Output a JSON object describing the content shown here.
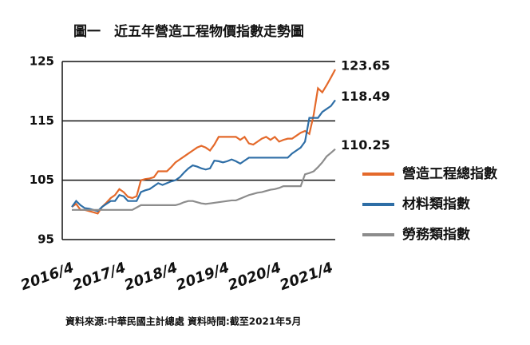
{
  "chart_data": {
    "type": "line",
    "title": "圖一　近五年營造工程物價指數走勢圖",
    "source": "資料來源:中華民國主計總處  資料時間:截至2021年5月",
    "categories": [
      "2016/4",
      null,
      null,
      null,
      null,
      null,
      null,
      null,
      null,
      null,
      null,
      null,
      "2017/4",
      null,
      null,
      null,
      null,
      null,
      null,
      null,
      null,
      null,
      null,
      null,
      "2018/4",
      null,
      null,
      null,
      null,
      null,
      null,
      null,
      null,
      null,
      null,
      null,
      "2019/4",
      null,
      null,
      null,
      null,
      null,
      null,
      null,
      null,
      null,
      null,
      null,
      "2020/4",
      null,
      null,
      null,
      null,
      null,
      null,
      null,
      null,
      null,
      null,
      null,
      "2021/4",
      null
    ],
    "ylim": [
      95,
      125
    ],
    "yticks": [
      95,
      105,
      115,
      125
    ],
    "grid": true,
    "series": [
      {
        "name": "營造工程總指數",
        "color": "#e4692a",
        "values": [
          100.5,
          101,
          100,
          100,
          99.8,
          99.6,
          99.4,
          100.5,
          101.2,
          102,
          102.5,
          103.5,
          103,
          102.2,
          102,
          102.3,
          105,
          105.2,
          105.3,
          105.5,
          106.5,
          106.5,
          106.5,
          107.2,
          108,
          108.5,
          109,
          109.5,
          110,
          110.5,
          110.8,
          110.5,
          110,
          111,
          112.3,
          112.3,
          112.3,
          112.3,
          112.3,
          111.8,
          112.3,
          111.2,
          111,
          111.5,
          112,
          112.3,
          111.8,
          112.3,
          111.5,
          111.8,
          112,
          112,
          112.5,
          113,
          113.3,
          112.8,
          116,
          120.5,
          119.8,
          121,
          122.3,
          123.65
        ]
      },
      {
        "name": "材料類指數",
        "color": "#2e6ea6",
        "values": [
          100.5,
          101.5,
          100.8,
          100.3,
          100.2,
          100,
          99.8,
          100.5,
          101,
          101.5,
          101.5,
          102.5,
          102.3,
          101.5,
          101.5,
          101.5,
          103,
          103.3,
          103.5,
          104,
          104.5,
          104.2,
          104.5,
          104.8,
          105,
          105.5,
          106.3,
          107,
          107.5,
          107.3,
          107,
          106.8,
          107,
          108.3,
          108.2,
          108,
          108.2,
          108.5,
          108.2,
          107.8,
          108.3,
          108.8,
          108.8,
          108.8,
          108.8,
          108.8,
          108.8,
          108.8,
          108.8,
          108.8,
          108.8,
          109.5,
          110,
          110.5,
          111.5,
          115.5,
          115.5,
          115.5,
          116.5,
          117,
          117.5,
          118.49
        ]
      },
      {
        "name": "勞務類指數",
        "color": "#8c8c8c",
        "values": [
          100,
          100,
          100,
          100,
          100,
          100,
          100,
          100,
          100,
          100,
          100,
          100,
          100,
          100,
          100,
          100.4,
          100.8,
          100.8,
          100.8,
          100.8,
          100.8,
          100.8,
          100.8,
          100.8,
          100.8,
          101,
          101.3,
          101.5,
          101.5,
          101.3,
          101.1,
          101,
          101.1,
          101.2,
          101.3,
          101.4,
          101.5,
          101.6,
          101.6,
          101.9,
          102.2,
          102.5,
          102.7,
          102.9,
          103,
          103.2,
          103.4,
          103.5,
          103.7,
          104,
          104,
          104,
          104,
          104,
          106,
          106.2,
          106.5,
          107.2,
          108,
          109,
          109.6,
          110.25
        ]
      }
    ]
  }
}
